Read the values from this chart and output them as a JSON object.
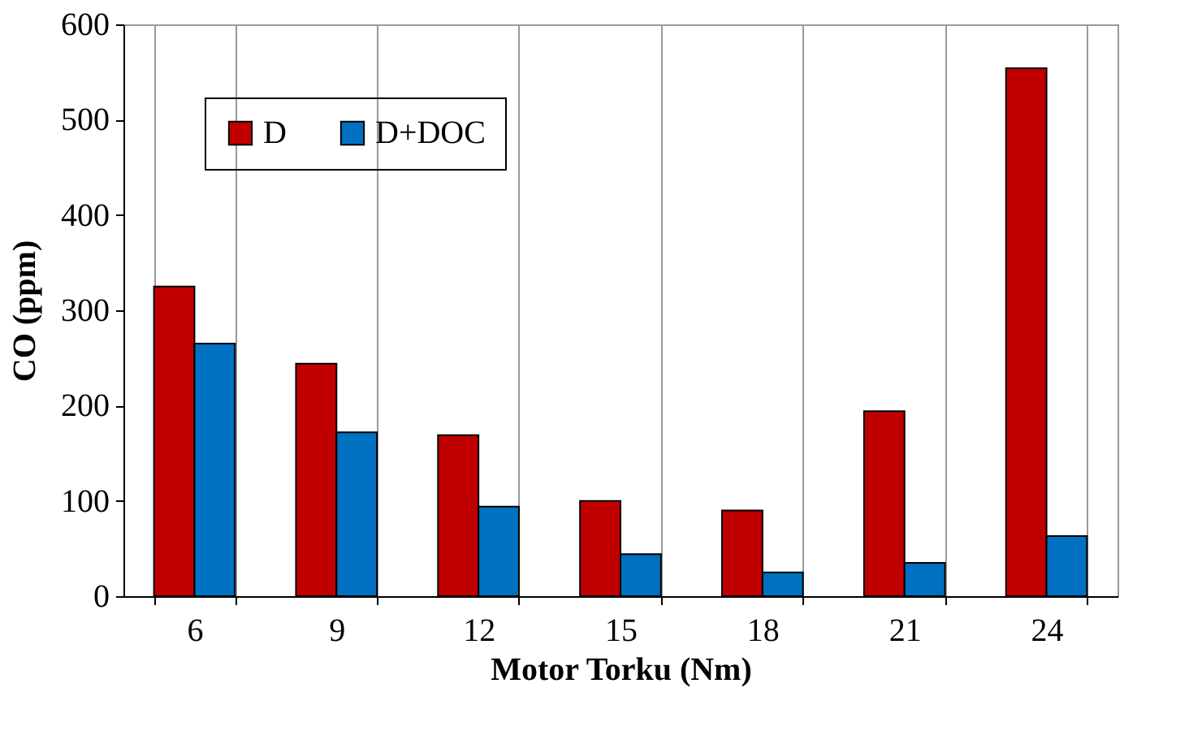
{
  "chart_data": {
    "type": "bar",
    "xlabel": "Motor Torku (Nm)",
    "ylabel": "CO (ppm)",
    "categories": [
      "6",
      "9",
      "12",
      "15",
      "18",
      "21",
      "24"
    ],
    "series": [
      {
        "name": "D",
        "color": "#c00000",
        "values": [
          325,
          244,
          169,
          100,
          90,
          194,
          554
        ]
      },
      {
        "name": "D+DOC",
        "color": "#0070c0",
        "values": [
          265,
          172,
          94,
          44,
          25,
          35,
          63
        ]
      }
    ],
    "ylim": [
      0,
      600
    ],
    "yticks": [
      0,
      100,
      200,
      300,
      400,
      500,
      600
    ],
    "grid": "x",
    "legend": "top left"
  }
}
